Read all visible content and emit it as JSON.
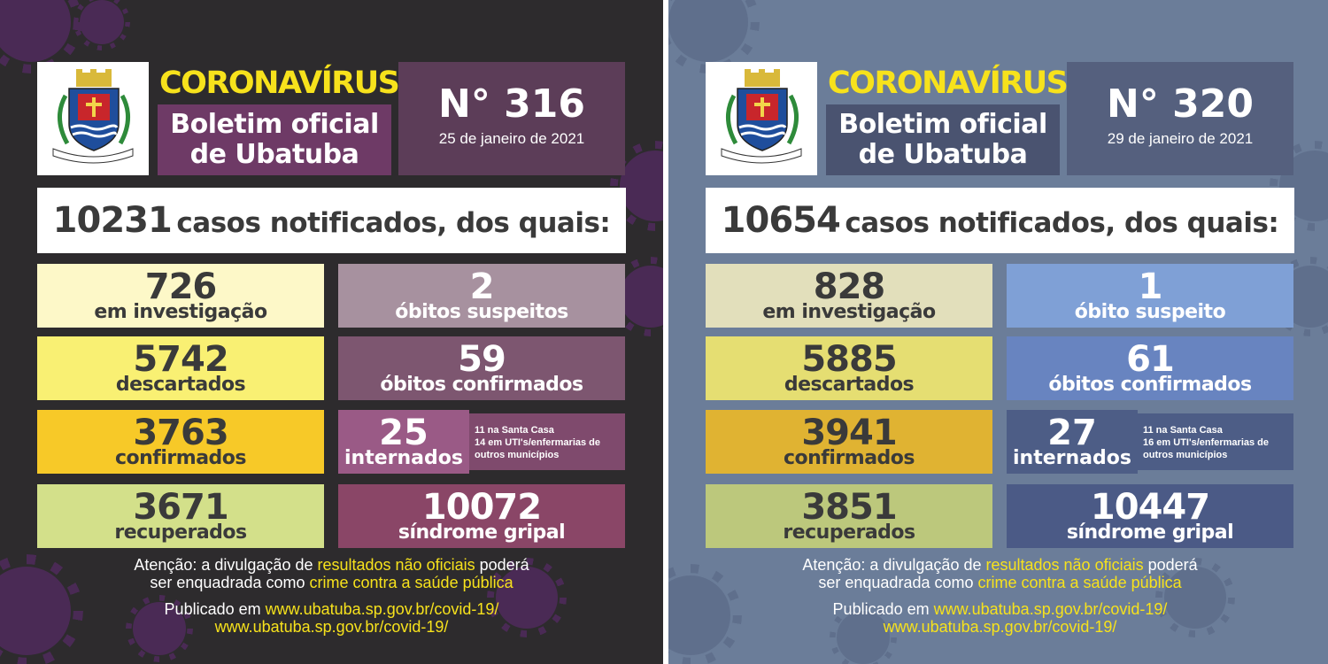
{
  "colors": {
    "yellow_accent": "#f7e21c",
    "left_bg": "#2d2b2d",
    "right_bg": "#6b7d99"
  },
  "logo": {
    "motto": "SERVAVIT PATRIAE",
    "ribbon_left": "UBATUBA",
    "ribbon_right": "ET FIDES"
  },
  "panels": [
    {
      "header": {
        "title": "CORONAVÍRUS",
        "subtitle_line1": "Boletim oficial",
        "subtitle_line2": "de Ubatuba",
        "number": "N° 316",
        "date": "25 de janeiro de 2021"
      },
      "cases": {
        "total": "10231",
        "text": "casos notificados, dos quais:"
      },
      "stats": {
        "investigacao": {
          "value": "726",
          "label": "em investigação"
        },
        "obitos_suspeitos": {
          "value": "2",
          "label": "óbitos suspeitos"
        },
        "descartados": {
          "value": "5742",
          "label": "descartados"
        },
        "obitos_confirmados": {
          "value": "59",
          "label": "óbitos confirmados"
        },
        "confirmados": {
          "value": "3763",
          "label": "confirmados"
        },
        "internados": {
          "value": "25",
          "label": "internados",
          "detail_line1": "11 na Santa Casa",
          "detail_line2": "14 em UTI's/enfermarias de",
          "detail_line3": "outros municípios"
        },
        "recuperados": {
          "value": "3671",
          "label": "recuperados"
        },
        "sindrome": {
          "value": "10072",
          "label": "síndrome gripal"
        }
      },
      "footer": {
        "attn_a": "Atenção: a divulgação de ",
        "attn_b": "resultados não oficiais",
        "attn_c": " poderá",
        "attn_d": "ser enquadrada como ",
        "attn_e": "crime contra a saúde pública",
        "pub_a": "Publicado em ",
        "pub_url1": "www.ubatuba.sp.gov.br/covid-19/",
        "pub_url2": "www.ubatuba.sp.gov.br/covid-19/"
      }
    },
    {
      "header": {
        "title": "CORONAVÍRUS",
        "subtitle_line1": "Boletim oficial",
        "subtitle_line2": "de Ubatuba",
        "number": "N° 320",
        "date": "29 de janeiro de 2021"
      },
      "cases": {
        "total": "10654",
        "text": "casos notificados, dos quais:"
      },
      "stats": {
        "investigacao": {
          "value": "828",
          "label": "em investigação"
        },
        "obitos_suspeitos": {
          "value": "1",
          "label": "óbito suspeito"
        },
        "descartados": {
          "value": "5885",
          "label": "descartados"
        },
        "obitos_confirmados": {
          "value": "61",
          "label": "óbitos confirmados"
        },
        "confirmados": {
          "value": "3941",
          "label": "confirmados"
        },
        "internados": {
          "value": "27",
          "label": "internados",
          "detail_line1": "11 na Santa Casa",
          "detail_line2": "16 em UTI's/enfermarias de",
          "detail_line3": "outros municípios"
        },
        "recuperados": {
          "value": "3851",
          "label": "recuperados"
        },
        "sindrome": {
          "value": "10447",
          "label": "síndrome gripal"
        }
      },
      "footer": {
        "attn_a": "Atenção: a divulgação de ",
        "attn_b": "resultados não oficiais",
        "attn_c": " poderá",
        "attn_d": "ser enquadrada como ",
        "attn_e": "crime contra a saúde pública",
        "pub_a": "Publicado em ",
        "pub_url1": "www.ubatuba.sp.gov.br/covid-19/",
        "pub_url2": "www.ubatuba.sp.gov.br/covid-19/"
      }
    }
  ]
}
